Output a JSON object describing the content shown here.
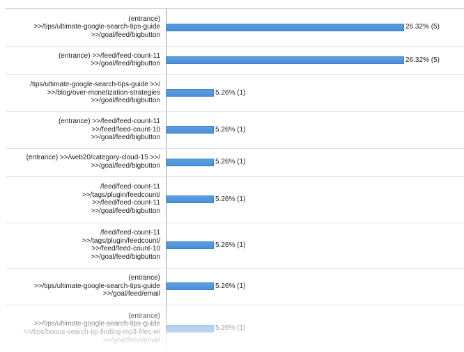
{
  "chart_data": {
    "type": "bar",
    "orientation": "horizontal",
    "xlim": [
      0,
      26.32
    ],
    "grid": false,
    "categories": [
      [
        "(entrance)",
        ">>/tips/ultimate-google-search-tips-guide",
        ">>/goal/feed/bigbutton"
      ],
      [
        "(entrance) >>/feed/feed-count-11",
        ">>/goal/feed/bigbutton"
      ],
      [
        "/tips/ultimate-google-search-tips-guide >>/",
        ">>/blog/over-monetization-strategies",
        ">>/goal/feed/bigbutton"
      ],
      [
        "(entrance) >>/feed/feed-count-11",
        ">>/feed/feed-count-10",
        ">>/goal/feed/bigbutton"
      ],
      [
        "(entrance) >>/web20/category-cloud-15 >>/",
        ">>/goal/feed/bigbutton"
      ],
      [
        "/feed/feed-count-11",
        ">>/tags/plugin/feedcount/",
        ">>/feed/feed-count-11",
        ">>/goal/feed/bigbutton"
      ],
      [
        "/feed/feed-count-11",
        ">>/tags/plugin/feedcount/",
        ">>/feed/feed-count-10",
        ">>/goal/feed/bigbutton"
      ],
      [
        "(entrance)",
        ">>/tips/ultimate-google-search-tips-guide",
        ">>/goal/feed/email"
      ],
      [
        "(entrance)",
        ">>/tips/ultimate-google-search-tips-guide",
        ">>/tips/bonus-search-tip-finding-mp3-files-wi",
        ">>/goal/feed/email"
      ]
    ],
    "values": [
      26.32,
      26.32,
      5.26,
      5.26,
      5.26,
      5.26,
      5.26,
      5.26,
      5.26
    ],
    "counts": [
      5,
      5,
      1,
      1,
      1,
      1,
      1,
      1,
      1
    ],
    "value_labels": [
      "26.32% (5)",
      "26.32% (5)",
      "5.26% (1)",
      "5.26% (1)",
      "5.26% (1)",
      "5.26% (1)",
      "5.26% (1)",
      "5.26% (1)",
      "5.26% (1)"
    ],
    "colors": {
      "bar": "#4a8fd6",
      "bar_border": "#3f82c8",
      "axis": "#9a9a9a",
      "separator": "#e2e2e2",
      "text": "#222222"
    }
  }
}
